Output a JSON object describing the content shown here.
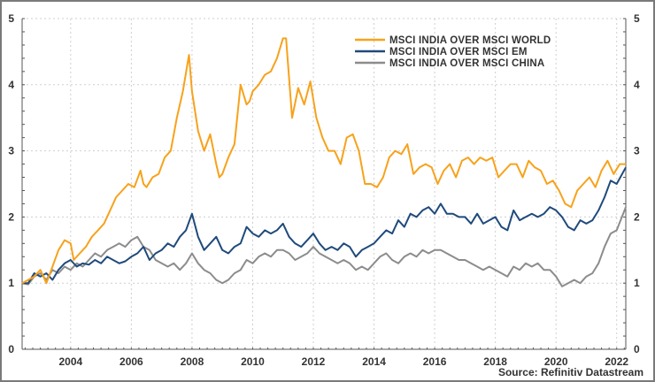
{
  "chart_data": {
    "type": "line",
    "title": "",
    "xlabel": "",
    "ylabel": "",
    "xlim": [
      2002.4,
      2022.3
    ],
    "ylim": [
      0,
      5
    ],
    "x_ticks": [
      "2004",
      "2006",
      "2008",
      "2010",
      "2012",
      "2014",
      "2016",
      "2018",
      "2020",
      "2022"
    ],
    "x_tick_values": [
      2004,
      2006,
      2008,
      2010,
      2012,
      2014,
      2016,
      2018,
      2020,
      2022
    ],
    "y_ticks_left": [
      "0",
      "1",
      "2",
      "3",
      "4",
      "5"
    ],
    "y_ticks_right": [
      "0",
      "1",
      "2",
      "3",
      "4",
      "5"
    ],
    "y_tick_values": [
      0,
      1,
      2,
      3,
      4,
      5
    ],
    "grid": true,
    "legend_position": "top-right",
    "source": "Source: Refinitiv Datastream",
    "series": [
      {
        "name": "MSCI INDIA OVER MSCI WORLD",
        "color": "#F7A21B",
        "x": [
          2002.4,
          2002.6,
          2002.8,
          2003.0,
          2003.2,
          2003.4,
          2003.6,
          2003.8,
          2004.0,
          2004.1,
          2004.3,
          2004.5,
          2004.7,
          2004.9,
          2005.1,
          2005.3,
          2005.5,
          2005.7,
          2005.9,
          2006.1,
          2006.3,
          2006.4,
          2006.5,
          2006.7,
          2006.9,
          2007.1,
          2007.3,
          2007.5,
          2007.7,
          2007.9,
          2008.0,
          2008.2,
          2008.4,
          2008.6,
          2008.8,
          2008.9,
          2009.0,
          2009.2,
          2009.4,
          2009.6,
          2009.8,
          2009.9,
          2010.0,
          2010.2,
          2010.4,
          2010.6,
          2010.8,
          2011.0,
          2011.1,
          2011.3,
          2011.5,
          2011.7,
          2011.9,
          2012.1,
          2012.3,
          2012.5,
          2012.7,
          2012.9,
          2013.1,
          2013.3,
          2013.5,
          2013.7,
          2013.9,
          2014.1,
          2014.3,
          2014.5,
          2014.7,
          2014.9,
          2015.1,
          2015.3,
          2015.5,
          2015.7,
          2015.9,
          2016.1,
          2016.3,
          2016.5,
          2016.7,
          2016.9,
          2017.1,
          2017.3,
          2017.5,
          2017.7,
          2017.9,
          2018.1,
          2018.3,
          2018.5,
          2018.7,
          2018.9,
          2019.1,
          2019.3,
          2019.5,
          2019.7,
          2019.9,
          2020.1,
          2020.3,
          2020.5,
          2020.7,
          2020.9,
          2021.1,
          2021.3,
          2021.5,
          2021.7,
          2021.9,
          2022.1,
          2022.3
        ],
        "values": [
          1.0,
          1.05,
          1.1,
          1.2,
          1.0,
          1.25,
          1.5,
          1.65,
          1.6,
          1.35,
          1.45,
          1.55,
          1.7,
          1.8,
          1.9,
          2.1,
          2.3,
          2.4,
          2.5,
          2.45,
          2.7,
          2.5,
          2.45,
          2.6,
          2.65,
          2.9,
          3.0,
          3.5,
          3.9,
          4.45,
          3.9,
          3.3,
          3.0,
          3.25,
          2.8,
          2.6,
          2.65,
          2.9,
          3.1,
          4.0,
          3.7,
          3.75,
          3.9,
          4.0,
          4.15,
          4.2,
          4.4,
          4.7,
          4.7,
          3.5,
          3.95,
          3.7,
          4.05,
          3.5,
          3.2,
          3.0,
          3.0,
          2.8,
          3.2,
          3.25,
          3.0,
          2.5,
          2.5,
          2.45,
          2.6,
          2.9,
          3.0,
          2.95,
          3.1,
          2.65,
          2.75,
          2.8,
          2.75,
          2.5,
          2.7,
          2.8,
          2.6,
          2.85,
          2.9,
          2.8,
          2.9,
          2.85,
          2.9,
          2.6,
          2.7,
          2.8,
          2.8,
          2.6,
          2.85,
          2.75,
          2.7,
          2.5,
          2.55,
          2.4,
          2.2,
          2.15,
          2.4,
          2.5,
          2.6,
          2.45,
          2.7,
          2.85,
          2.65,
          2.8,
          2.8
        ]
      },
      {
        "name": "MSCI INDIA OVER MSCI EM",
        "color": "#1F4A7C",
        "x": [
          2002.4,
          2002.6,
          2002.8,
          2003.0,
          2003.2,
          2003.4,
          2003.6,
          2003.8,
          2004.0,
          2004.2,
          2004.4,
          2004.6,
          2004.8,
          2005.0,
          2005.2,
          2005.4,
          2005.6,
          2005.8,
          2006.0,
          2006.2,
          2006.4,
          2006.6,
          2006.8,
          2007.0,
          2007.2,
          2007.4,
          2007.6,
          2007.8,
          2008.0,
          2008.2,
          2008.4,
          2008.6,
          2008.8,
          2009.0,
          2009.2,
          2009.4,
          2009.6,
          2009.8,
          2010.0,
          2010.2,
          2010.4,
          2010.6,
          2010.8,
          2011.0,
          2011.2,
          2011.4,
          2011.6,
          2011.8,
          2012.0,
          2012.2,
          2012.4,
          2012.6,
          2012.8,
          2013.0,
          2013.2,
          2013.4,
          2013.6,
          2013.8,
          2014.0,
          2014.2,
          2014.4,
          2014.6,
          2014.8,
          2015.0,
          2015.2,
          2015.4,
          2015.6,
          2015.8,
          2016.0,
          2016.2,
          2016.4,
          2016.6,
          2016.8,
          2017.0,
          2017.2,
          2017.4,
          2017.6,
          2017.8,
          2018.0,
          2018.2,
          2018.4,
          2018.6,
          2018.8,
          2019.0,
          2019.2,
          2019.4,
          2019.6,
          2019.8,
          2020.0,
          2020.2,
          2020.4,
          2020.6,
          2020.8,
          2021.0,
          2021.2,
          2021.4,
          2021.6,
          2021.8,
          2022.0,
          2022.3
        ],
        "values": [
          1.0,
          1.0,
          1.15,
          1.1,
          1.15,
          1.05,
          1.2,
          1.3,
          1.35,
          1.25,
          1.3,
          1.28,
          1.35,
          1.3,
          1.4,
          1.35,
          1.3,
          1.33,
          1.4,
          1.45,
          1.55,
          1.35,
          1.45,
          1.5,
          1.6,
          1.55,
          1.7,
          1.8,
          2.05,
          1.7,
          1.5,
          1.6,
          1.7,
          1.5,
          1.45,
          1.55,
          1.6,
          1.85,
          1.75,
          1.7,
          1.8,
          1.75,
          1.8,
          1.9,
          1.7,
          1.6,
          1.55,
          1.65,
          1.75,
          1.6,
          1.5,
          1.55,
          1.5,
          1.6,
          1.55,
          1.4,
          1.5,
          1.55,
          1.6,
          1.7,
          1.8,
          1.75,
          1.95,
          1.85,
          2.05,
          2.0,
          2.1,
          2.15,
          2.05,
          2.2,
          2.05,
          2.05,
          2.0,
          2.0,
          1.9,
          2.05,
          1.9,
          1.95,
          2.0,
          1.85,
          1.8,
          2.1,
          1.95,
          2.0,
          2.05,
          2.0,
          2.05,
          2.15,
          2.1,
          2.0,
          1.85,
          1.8,
          1.95,
          1.9,
          1.95,
          2.1,
          2.3,
          2.55,
          2.5,
          2.75
        ]
      },
      {
        "name": "MSCI INDIA OVER MSCI CHINA",
        "color": "#8C8C8C",
        "x": [
          2002.4,
          2002.6,
          2002.8,
          2003.0,
          2003.2,
          2003.4,
          2003.6,
          2003.8,
          2004.0,
          2004.2,
          2004.4,
          2004.6,
          2004.8,
          2005.0,
          2005.2,
          2005.4,
          2005.6,
          2005.8,
          2006.0,
          2006.2,
          2006.4,
          2006.6,
          2006.8,
          2007.0,
          2007.2,
          2007.4,
          2007.6,
          2007.8,
          2008.0,
          2008.2,
          2008.4,
          2008.6,
          2008.8,
          2009.0,
          2009.2,
          2009.4,
          2009.6,
          2009.8,
          2010.0,
          2010.2,
          2010.4,
          2010.6,
          2010.8,
          2011.0,
          2011.2,
          2011.4,
          2011.6,
          2011.8,
          2012.0,
          2012.2,
          2012.4,
          2012.6,
          2012.8,
          2013.0,
          2013.2,
          2013.4,
          2013.6,
          2013.8,
          2014.0,
          2014.2,
          2014.4,
          2014.6,
          2014.8,
          2015.0,
          2015.2,
          2015.4,
          2015.6,
          2015.8,
          2016.0,
          2016.2,
          2016.4,
          2016.6,
          2016.8,
          2017.0,
          2017.2,
          2017.4,
          2017.6,
          2017.8,
          2018.0,
          2018.2,
          2018.4,
          2018.6,
          2018.8,
          2019.0,
          2019.2,
          2019.4,
          2019.6,
          2019.8,
          2020.0,
          2020.2,
          2020.4,
          2020.6,
          2020.8,
          2021.0,
          2021.2,
          2021.4,
          2021.6,
          2021.8,
          2022.0,
          2022.3
        ],
        "values": [
          1.0,
          0.98,
          1.1,
          1.15,
          1.05,
          1.2,
          1.15,
          1.25,
          1.2,
          1.3,
          1.25,
          1.35,
          1.45,
          1.4,
          1.5,
          1.55,
          1.6,
          1.55,
          1.65,
          1.7,
          1.55,
          1.5,
          1.35,
          1.3,
          1.25,
          1.3,
          1.2,
          1.3,
          1.45,
          1.3,
          1.2,
          1.15,
          1.05,
          1.0,
          1.05,
          1.15,
          1.2,
          1.35,
          1.3,
          1.4,
          1.45,
          1.4,
          1.5,
          1.5,
          1.45,
          1.35,
          1.4,
          1.45,
          1.55,
          1.45,
          1.4,
          1.35,
          1.3,
          1.35,
          1.3,
          1.2,
          1.25,
          1.2,
          1.3,
          1.4,
          1.45,
          1.35,
          1.3,
          1.4,
          1.45,
          1.4,
          1.5,
          1.45,
          1.5,
          1.5,
          1.45,
          1.4,
          1.35,
          1.35,
          1.3,
          1.25,
          1.2,
          1.25,
          1.2,
          1.15,
          1.1,
          1.25,
          1.2,
          1.3,
          1.25,
          1.3,
          1.2,
          1.2,
          1.1,
          0.95,
          1.0,
          1.05,
          1.0,
          1.1,
          1.15,
          1.3,
          1.55,
          1.75,
          1.8,
          2.15
        ]
      }
    ]
  }
}
